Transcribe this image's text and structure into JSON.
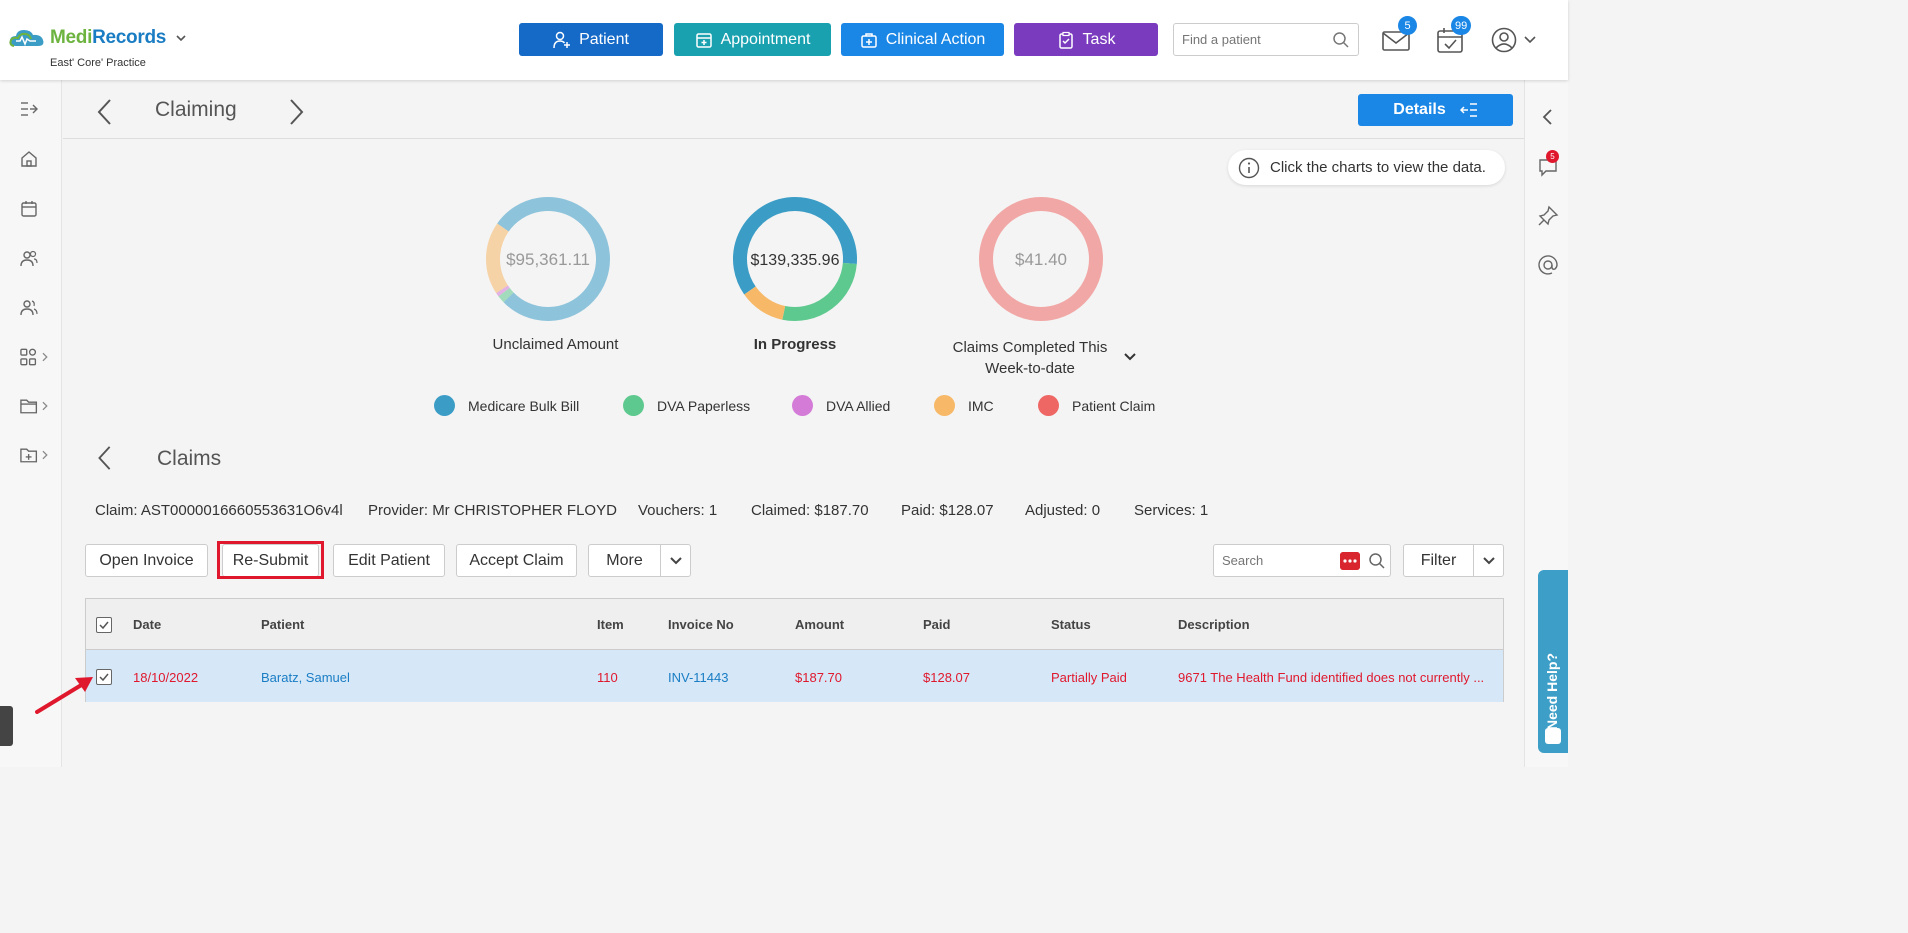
{
  "header": {
    "brand": {
      "part1": "Medi",
      "part2": "Records"
    },
    "practice": "East' Core' Practice",
    "buttons": {
      "patient": "Patient",
      "appointment": "Appointment",
      "clinical_action": "Clinical Action",
      "task": "Task"
    },
    "search_placeholder": "Find a patient",
    "mail_count": "5",
    "calendar_count": "99"
  },
  "page": {
    "title": "Claiming",
    "details_label": "Details",
    "tip": "Click the charts to view the data."
  },
  "charts": {
    "unclaimed": {
      "value": "$95,361.11",
      "label": "Unclaimed Amount"
    },
    "in_progress": {
      "value": "$139,335.96",
      "label": "In Progress"
    },
    "completed": {
      "value": "$41.40",
      "label": "Claims Completed This Week-to-date"
    }
  },
  "chart_data": [
    {
      "type": "pie",
      "label": "Unclaimed Amount",
      "center": "$95,361.11",
      "categories": [
        "Medicare Bulk Bill",
        "DVA Paperless",
        "DVA Allied",
        "IMC"
      ],
      "values": [
        0.78,
        0.02,
        0.01,
        0.19
      ]
    },
    {
      "type": "pie",
      "label": "In Progress",
      "center": "$139,335.96",
      "categories": [
        "Medicare Bulk Bill",
        "DVA Paperless",
        "IMC"
      ],
      "values": [
        0.61,
        0.27,
        0.12
      ]
    },
    {
      "type": "pie",
      "label": "Claims Completed This Week-to-date",
      "center": "$41.40",
      "categories": [
        "Patient Claim"
      ],
      "values": [
        1.0
      ]
    }
  ],
  "legend": [
    {
      "label": "Medicare Bulk Bill",
      "color": "#3b9dc6"
    },
    {
      "label": "DVA Paperless",
      "color": "#5ec98e"
    },
    {
      "label": "DVA Allied",
      "color": "#d47bd8"
    },
    {
      "label": "IMC",
      "color": "#f7b867"
    },
    {
      "label": "Patient Claim",
      "color": "#ee6764"
    }
  ],
  "claims": {
    "title": "Claims",
    "info": {
      "claim": "Claim: AST0000016660553631O6v4l",
      "provider": "Provider: Mr CHRISTOPHER FLOYD",
      "vouchers": "Vouchers: 1",
      "claimed": "Claimed: $187.70",
      "paid": "Paid: $128.07",
      "adjusted": "Adjusted: 0",
      "services": "Services: 1"
    },
    "actions": {
      "open_invoice": "Open Invoice",
      "resubmit": "Re-Submit",
      "edit_patient": "Edit Patient",
      "accept_claim": "Accept Claim",
      "more": "More",
      "filter": "Filter"
    },
    "search_placeholder": "Search",
    "columns": [
      "Date",
      "Patient",
      "Item",
      "Invoice No",
      "Amount",
      "Paid",
      "Status",
      "Description"
    ],
    "rows": [
      {
        "date": "18/10/2022",
        "patient": "Baratz, Samuel",
        "item": "110",
        "invoice": "INV-11443",
        "amount": "$187.70",
        "paid": "$128.07",
        "status": "Partially Paid",
        "description": "9671 The Health Fund identified does not currently ..."
      }
    ]
  },
  "help": {
    "label": "Need Help?"
  },
  "right_badge": "5"
}
